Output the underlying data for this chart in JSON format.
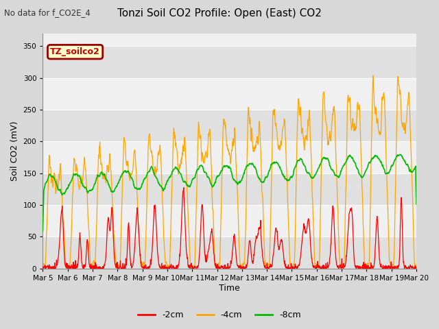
{
  "title": "Tonzi Soil CO2 Profile: Open (East) CO2",
  "subtitle": "No data for f_CO2E_4",
  "ylabel": "Soil CO2 (mV)",
  "xlabel": "Time",
  "legend_label": "TZ_soilco2",
  "series_labels": [
    "-2cm",
    "-4cm",
    "-8cm"
  ],
  "series_colors": [
    "#ff0000",
    "#ffa500",
    "#00bb00"
  ],
  "ylim": [
    0,
    370
  ],
  "yticks": [
    0,
    50,
    100,
    150,
    200,
    250,
    300,
    350
  ],
  "bg_color": "#d8d8d8",
  "plot_bg_light": "#f0f0f0",
  "plot_bg_dark": "#e0e0e0",
  "grid_color": "#ffffff",
  "n_days": 15,
  "start_day": 5
}
